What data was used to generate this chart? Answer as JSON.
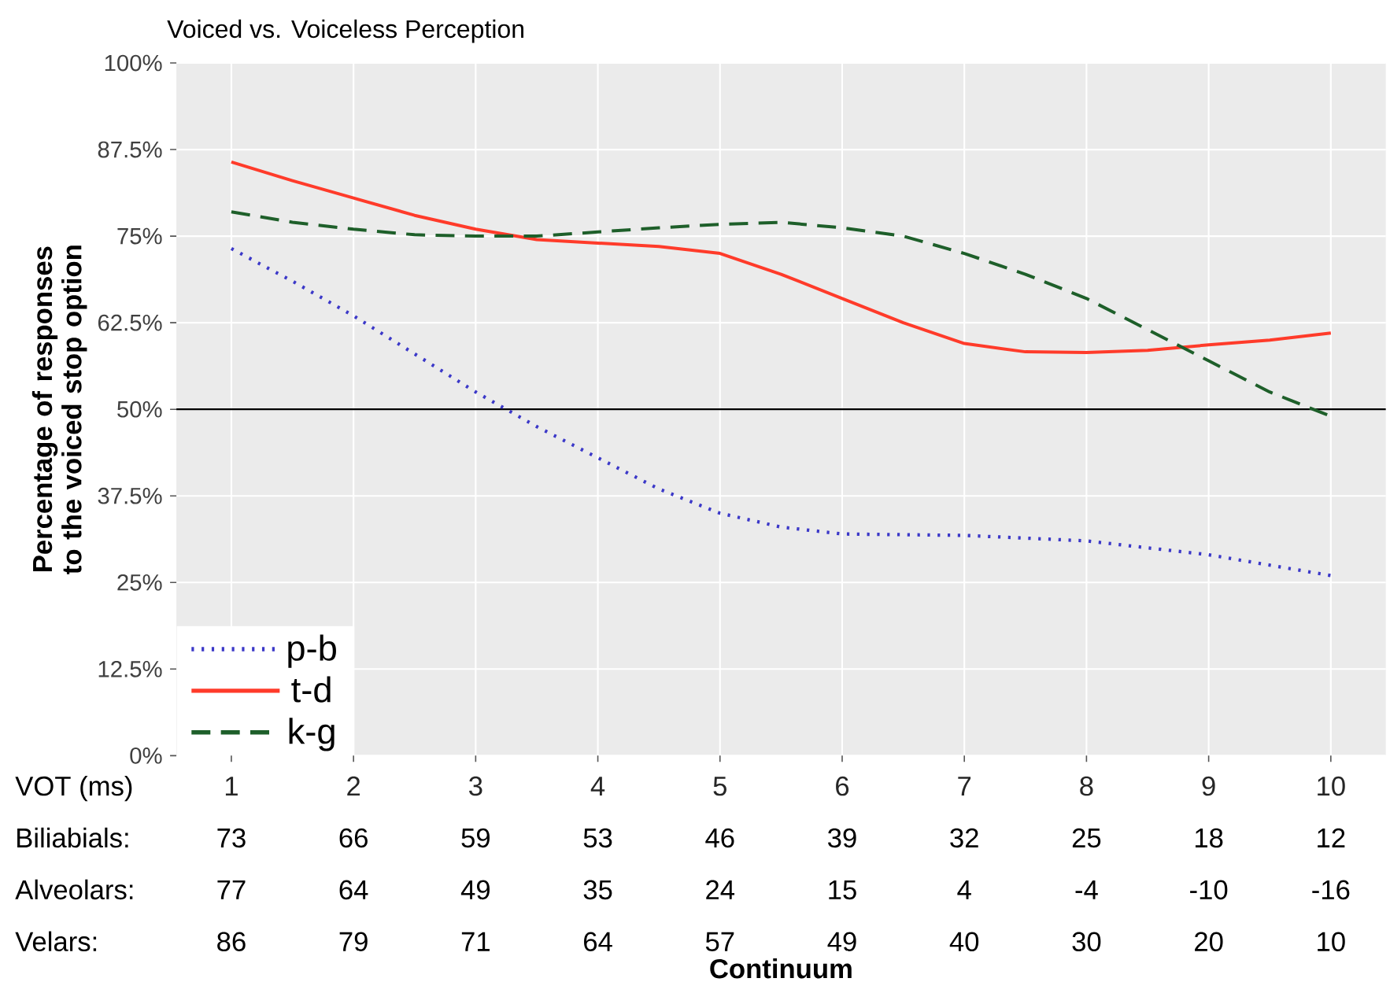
{
  "chart_data": {
    "type": "line",
    "title": "Voiced vs. Voiceless Perception",
    "ylabel": "Percentage of responses to the voiced stop option",
    "xlim": [
      0.55,
      10.45
    ],
    "ylim": [
      0,
      100
    ],
    "xticks": [
      1,
      2,
      3,
      4,
      5,
      6,
      7,
      8,
      9,
      10
    ],
    "yticks": [
      {
        "value": 0,
        "label": "0%"
      },
      {
        "value": 12.5,
        "label": "12.5%"
      },
      {
        "value": 25,
        "label": "25%"
      },
      {
        "value": 37.5,
        "label": "37.5%"
      },
      {
        "value": 50,
        "label": "50%"
      },
      {
        "value": 62.5,
        "label": "62.5%"
      },
      {
        "value": 75,
        "label": "75%"
      },
      {
        "value": 87.5,
        "label": "87.5%"
      },
      {
        "value": 100,
        "label": "100%"
      }
    ],
    "grid": true,
    "legend": "bottom left",
    "ref_lines": [
      {
        "axis": "y",
        "value": 50,
        "color": "#000000"
      }
    ],
    "series": [
      {
        "name": "p-b",
        "color": "#3b38c8",
        "line_style": "dotted",
        "x": [
          1,
          1.5,
          2,
          2.5,
          3,
          3.5,
          4,
          4.5,
          5,
          5.5,
          6,
          7,
          8,
          9,
          10
        ],
        "values": [
          73.2,
          68.5,
          63.5,
          58,
          52.5,
          47.5,
          43,
          38.5,
          35,
          33,
          32,
          31.8,
          31,
          29,
          26
        ]
      },
      {
        "name": "t-d",
        "color": "#ff3b2a",
        "line_style": "solid",
        "x": [
          1,
          1.5,
          2,
          2.5,
          3,
          3.5,
          4,
          4.5,
          5,
          5.5,
          6,
          6.5,
          7,
          7.5,
          8,
          8.5,
          9,
          9.5,
          10
        ],
        "values": [
          85.7,
          83,
          80.5,
          78,
          76,
          74.5,
          74,
          73.5,
          72.5,
          69.5,
          66,
          62.5,
          59.5,
          58.3,
          58.2,
          58.5,
          59.3,
          60,
          61
        ]
      },
      {
        "name": "k-g",
        "color": "#1e5f2a",
        "line_style": "dashed",
        "x": [
          1,
          1.5,
          2,
          2.5,
          3,
          3.5,
          4,
          4.5,
          5,
          5.5,
          6,
          6.5,
          7,
          7.5,
          8,
          8.5,
          9,
          9.5,
          10
        ],
        "values": [
          78.5,
          77,
          76,
          75.2,
          75,
          75,
          75.6,
          76.2,
          76.7,
          77,
          76.2,
          75,
          72.5,
          69.5,
          66,
          61.5,
          57,
          52.5,
          49
        ]
      }
    ],
    "annotations": [
      "VOT (ms)",
      "Biliabials:",
      "73",
      "66",
      "59",
      "53",
      "46",
      "39",
      "32",
      "25",
      "18",
      "12",
      "Alveolars:",
      "77",
      "64",
      "49",
      "35",
      "24",
      "15",
      "4",
      "-4",
      "-10",
      "-16",
      "Velars:",
      "86",
      "79",
      "71",
      "64",
      "57",
      "49",
      "40",
      "30",
      "20",
      "10",
      "Continuum"
    ]
  }
}
